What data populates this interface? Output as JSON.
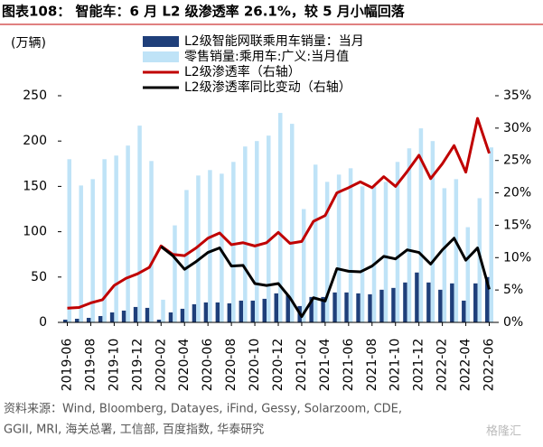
{
  "chart_data": {
    "type": "bar_line",
    "title": "图表108： 智能车：6 月 L2 级渗透率 26.1%，较 5 月小幅回落",
    "y_label": "(万辆)",
    "source": [
      "资料来源：Wind, Bloomberg, Datayes, iFind, Gessy, Solarzoom, CDE,",
      "GGII, MRI, 海关总署, 工信部, 百度指数, 华泰研究"
    ],
    "watermark": "格隆汇",
    "categories": [
      "2019-06",
      null,
      "2019-08",
      null,
      "2019-10",
      null,
      "2019-12",
      null,
      "2020-02",
      null,
      "2020-04",
      null,
      "2020-06",
      null,
      "2020-08",
      null,
      "2020-10",
      null,
      "2020-12",
      null,
      "2021-02",
      null,
      "2021-04",
      null,
      "2021-06",
      null,
      "2021-08",
      null,
      "2021-10",
      null,
      "2021-12",
      null,
      "2022-02",
      null,
      "2022-04",
      null,
      "2022-06"
    ],
    "ylim": [
      0,
      250
    ],
    "yticks": [
      0,
      50,
      100,
      150,
      200,
      250
    ],
    "y2lim": [
      0,
      35
    ],
    "y2ticks": [
      {
        "value": 0,
        "label": "0%"
      },
      {
        "value": 5,
        "label": "5%"
      },
      {
        "value": 10,
        "label": "10%"
      },
      {
        "value": 15,
        "label": "15%"
      },
      {
        "value": 20,
        "label": "20%"
      },
      {
        "value": 25,
        "label": "25%"
      },
      {
        "value": 30,
        "label": "30%"
      },
      {
        "value": 35,
        "label": "35%"
      }
    ],
    "series": [
      {
        "name": "L2级智能网联乘用车销量：当月",
        "type": "bar",
        "color": "#1f3f7a",
        "values": [
          3,
          4,
          5,
          7,
          11,
          13,
          17,
          16,
          3,
          11,
          15,
          20,
          22,
          22,
          21,
          24,
          24,
          26,
          32,
          30,
          18,
          28,
          28,
          33,
          33,
          32,
          31,
          36,
          38,
          44,
          55,
          44,
          36,
          43,
          24,
          43,
          50
        ]
      },
      {
        "name": "零售销量:乘用车:广义:当月值",
        "type": "bar",
        "color": "#bfe3f7",
        "values": [
          180,
          151,
          158,
          180,
          184,
          195,
          217,
          178,
          25,
          107,
          146,
          162,
          168,
          164,
          177,
          194,
          200,
          206,
          231,
          219,
          125,
          174,
          155,
          163,
          170,
          150,
          150,
          155,
          177,
          192,
          214,
          200,
          148,
          158,
          105,
          137,
          193
        ]
      },
      {
        "name": "L2级渗透率（右轴）",
        "type": "line",
        "axis": "y2",
        "color": "#c00000",
        "values": [
          2.2,
          2.3,
          3.0,
          3.5,
          5.7,
          6.8,
          7.5,
          8.5,
          11.8,
          10.5,
          10.3,
          11.5,
          13,
          13.8,
          12,
          12.3,
          11.8,
          12.3,
          13.9,
          12.2,
          12.5,
          15.6,
          16.5,
          20,
          20.8,
          21.7,
          20.8,
          22.5,
          21,
          23.3,
          25.8,
          22.2,
          24.5,
          27.3,
          23.2,
          31.5,
          26.1
        ]
      },
      {
        "name": "L2级渗透率同比变动（右轴）",
        "type": "line",
        "axis": "y2",
        "color": "#000000",
        "values": [
          null,
          null,
          null,
          null,
          null,
          null,
          null,
          null,
          11.7,
          10.3,
          8.2,
          9.4,
          10.8,
          11.5,
          8.7,
          8.8,
          6.0,
          5.7,
          6.0,
          3.8,
          0.9,
          3.8,
          3.3,
          8.3,
          7.9,
          7.8,
          8.7,
          10.2,
          9.8,
          11.2,
          10.8,
          9.0,
          11.2,
          13,
          9.6,
          11.5,
          5.1
        ]
      }
    ]
  }
}
